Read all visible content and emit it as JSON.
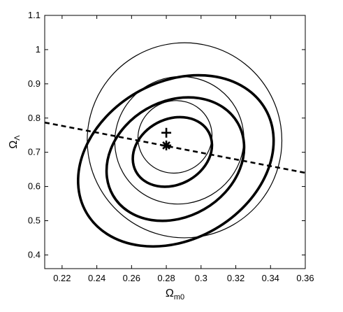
{
  "chart_data": {
    "type": "line",
    "title": "",
    "xlabel_main": "Ω",
    "xlabel_sub": "m0",
    "ylabel_main": "Ω",
    "ylabel_sub": "Λ",
    "xlim": [
      0.21,
      0.36
    ],
    "ylim": [
      0.36,
      1.1
    ],
    "x_ticks": [
      "0.22",
      "0.24",
      "0.26",
      "0.28",
      "0.3",
      "0.32",
      "0.34",
      "0.36"
    ],
    "y_ticks": [
      "0.4",
      "0.5",
      "0.6",
      "0.7",
      "0.8",
      "0.9",
      "1",
      "1.1"
    ],
    "grid": false,
    "dashed_line": {
      "x": [
        0.21,
        0.36
      ],
      "y": [
        0.787,
        0.64
      ]
    },
    "markers": [
      {
        "symbol": "+",
        "x": 0.28,
        "y": 0.757
      },
      {
        "symbol": "*",
        "x": 0.28,
        "y": 0.72
      }
    ],
    "thick_contours": [
      {
        "cx": 0.2835,
        "cy": 0.701,
        "rx": 0.0238,
        "ry": 0.0956,
        "rot_deg": -28
      },
      {
        "cx": 0.2852,
        "cy": 0.68,
        "rx": 0.0415,
        "ry": 0.169,
        "rot_deg": -30
      },
      {
        "cx": 0.2855,
        "cy": 0.675,
        "rx": 0.0595,
        "ry": 0.23,
        "rot_deg": -30
      }
    ],
    "thin_contours": [
      {
        "cx": 0.285,
        "cy": 0.745,
        "rx": 0.0215,
        "ry": 0.105,
        "rot_deg": -28
      },
      {
        "cx": 0.2875,
        "cy": 0.735,
        "rx": 0.0374,
        "ry": 0.185,
        "rot_deg": -30
      },
      {
        "cx": 0.2905,
        "cy": 0.735,
        "rx": 0.056,
        "ry": 0.285,
        "rot_deg": -30
      }
    ]
  }
}
